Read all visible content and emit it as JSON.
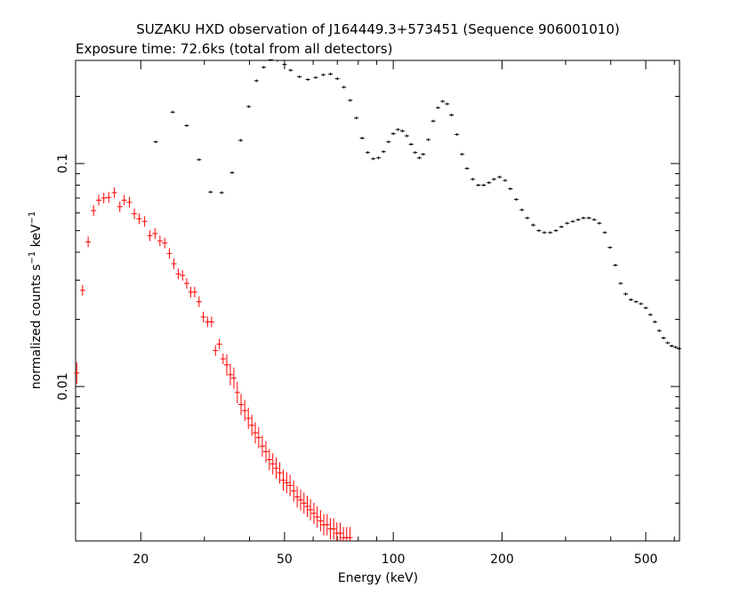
{
  "chart_data": {
    "type": "scatter",
    "title": "SUZAKU HXD observation of J164449.3+573451 (Sequence 906001010)",
    "subtitle": "Exposure time: 72.6ks (total from all detectors)",
    "xlabel": "Energy (keV)",
    "ylabel": "normalized counts s⁻¹ keV⁻¹",
    "ylabel_parts": {
      "text_a": "normalized counts s",
      "sup_a": "−1",
      "text_b": " keV",
      "sup_b": "−1"
    },
    "xscale": "log",
    "yscale": "log",
    "xlim": [
      13.2,
      620
    ],
    "ylim": [
      0.00203,
      0.29
    ],
    "xticks": [
      {
        "value": 20,
        "label": "20"
      },
      {
        "value": 50,
        "label": "50"
      },
      {
        "value": 100,
        "label": "100"
      },
      {
        "value": 200,
        "label": "200"
      },
      {
        "value": 500,
        "label": "500"
      }
    ],
    "yticks": [
      {
        "value": 0.01,
        "label": "0.01"
      },
      {
        "value": 0.1,
        "label": "0.1"
      }
    ],
    "grid": false,
    "series": [
      {
        "color": "#ff0000",
        "points": [
          [
            13.3,
            0.0115
          ],
          [
            13.8,
            0.027
          ],
          [
            14.3,
            0.0445
          ],
          [
            14.8,
            0.0615
          ],
          [
            15.3,
            0.0685
          ],
          [
            15.8,
            0.07
          ],
          [
            16.3,
            0.0705
          ],
          [
            16.9,
            0.074
          ],
          [
            17.5,
            0.064
          ],
          [
            18.0,
            0.0685
          ],
          [
            18.6,
            0.067
          ],
          [
            19.2,
            0.0595
          ],
          [
            19.8,
            0.0565
          ],
          [
            20.5,
            0.055
          ],
          [
            21.2,
            0.0475
          ],
          [
            21.9,
            0.0485
          ],
          [
            22.6,
            0.045
          ],
          [
            23.3,
            0.044
          ],
          [
            24.0,
            0.0395
          ],
          [
            24.7,
            0.0355
          ],
          [
            25.4,
            0.032
          ],
          [
            26.1,
            0.0315
          ],
          [
            26.8,
            0.029
          ],
          [
            27.5,
            0.0265
          ],
          [
            28.2,
            0.0265
          ],
          [
            29.0,
            0.024
          ],
          [
            29.8,
            0.0205
          ],
          [
            30.6,
            0.0195
          ],
          [
            31.4,
            0.0195
          ],
          [
            32.2,
            0.0145
          ],
          [
            33.0,
            0.0155
          ],
          [
            33.8,
            0.0133
          ],
          [
            34.6,
            0.0125
          ],
          [
            35.4,
            0.0113
          ],
          [
            36.2,
            0.0109
          ],
          [
            37.0,
            0.0094
          ],
          [
            37.9,
            0.0083
          ],
          [
            38.8,
            0.0078
          ],
          [
            39.7,
            0.0072
          ],
          [
            40.6,
            0.0067
          ],
          [
            41.5,
            0.0062
          ],
          [
            42.4,
            0.0059
          ],
          [
            43.4,
            0.0054
          ],
          [
            44.4,
            0.0051
          ],
          [
            45.4,
            0.0047
          ],
          [
            46.4,
            0.0045
          ],
          [
            47.4,
            0.0043
          ],
          [
            48.5,
            0.0041
          ],
          [
            49.6,
            0.0038
          ],
          [
            50.7,
            0.0037
          ],
          [
            51.8,
            0.0036
          ],
          [
            53.0,
            0.0034
          ],
          [
            54.2,
            0.0032
          ],
          [
            55.4,
            0.0031
          ],
          [
            56.6,
            0.003
          ],
          [
            57.8,
            0.0029
          ],
          [
            59.0,
            0.0028
          ],
          [
            60.3,
            0.0027
          ],
          [
            61.6,
            0.0026
          ],
          [
            62.9,
            0.0025
          ],
          [
            64.2,
            0.0024
          ],
          [
            65.6,
            0.0024
          ],
          [
            67.0,
            0.0023
          ],
          [
            68.4,
            0.0023
          ],
          [
            69.8,
            0.0022
          ],
          [
            71.3,
            0.0022
          ],
          [
            72.8,
            0.0021
          ],
          [
            74.3,
            0.0021
          ],
          [
            75.9,
            0.0021
          ]
        ]
      },
      {
        "color": "#000000",
        "points": [
          [
            22.0,
            0.125
          ],
          [
            24.5,
            0.17
          ],
          [
            26.8,
            0.148
          ],
          [
            29.0,
            0.104
          ],
          [
            31.2,
            0.0745
          ],
          [
            33.5,
            0.074
          ],
          [
            35.8,
            0.091
          ],
          [
            37.8,
            0.127
          ],
          [
            39.8,
            0.18
          ],
          [
            41.8,
            0.235
          ],
          [
            43.8,
            0.27
          ],
          [
            45.8,
            0.292
          ],
          [
            47.8,
            0.29
          ],
          [
            50.0,
            0.278
          ],
          [
            52.0,
            0.262
          ],
          [
            55.0,
            0.245
          ],
          [
            58.0,
            0.238
          ],
          [
            61.0,
            0.243
          ],
          [
            64.0,
            0.25
          ],
          [
            67.0,
            0.252
          ],
          [
            70.0,
            0.24
          ],
          [
            73.0,
            0.22
          ],
          [
            76.0,
            0.192
          ],
          [
            79.0,
            0.16
          ],
          [
            82.0,
            0.13
          ],
          [
            85.0,
            0.112
          ],
          [
            88.0,
            0.105
          ],
          [
            91.0,
            0.106
          ],
          [
            94.0,
            0.113
          ],
          [
            97.0,
            0.125
          ],
          [
            100.0,
            0.136
          ],
          [
            103.0,
            0.142
          ],
          [
            106.0,
            0.14
          ],
          [
            109.0,
            0.133
          ],
          [
            112.0,
            0.122
          ],
          [
            115.0,
            0.112
          ],
          [
            118.0,
            0.106
          ],
          [
            121.0,
            0.11
          ],
          [
            125.0,
            0.128
          ],
          [
            129.0,
            0.155
          ],
          [
            133.0,
            0.178
          ],
          [
            137.0,
            0.19
          ],
          [
            141.0,
            0.185
          ],
          [
            145.0,
            0.165
          ],
          [
            150.0,
            0.135
          ],
          [
            155.0,
            0.11
          ],
          [
            160.0,
            0.095
          ],
          [
            166.0,
            0.085
          ],
          [
            172.0,
            0.08
          ],
          [
            178.0,
            0.08
          ],
          [
            184.0,
            0.082
          ],
          [
            190.0,
            0.085
          ],
          [
            197.0,
            0.087
          ],
          [
            204.0,
            0.084
          ],
          [
            211.0,
            0.077
          ],
          [
            219.0,
            0.069
          ],
          [
            227.0,
            0.062
          ],
          [
            235.0,
            0.057
          ],
          [
            244.0,
            0.053
          ],
          [
            253.0,
            0.05
          ],
          [
            262.0,
            0.049
          ],
          [
            272.0,
            0.049
          ],
          [
            282.0,
            0.05
          ],
          [
            292.0,
            0.052
          ],
          [
            303.0,
            0.054
          ],
          [
            314.0,
            0.055
          ],
          [
            325.0,
            0.056
          ],
          [
            336.0,
            0.057
          ],
          [
            348.0,
            0.057
          ],
          [
            360.0,
            0.056
          ],
          [
            372.0,
            0.054
          ],
          [
            385.0,
            0.049
          ],
          [
            398.0,
            0.042
          ],
          [
            412.0,
            0.035
          ],
          [
            426.0,
            0.029
          ],
          [
            440.0,
            0.026
          ],
          [
            455.0,
            0.0245
          ],
          [
            470.0,
            0.024
          ],
          [
            485.0,
            0.0235
          ],
          [
            500.0,
            0.0225
          ],
          [
            515.0,
            0.021
          ],
          [
            530.0,
            0.0195
          ],
          [
            545.0,
            0.0178
          ],
          [
            560.0,
            0.0165
          ],
          [
            575.0,
            0.0157
          ],
          [
            590.0,
            0.0152
          ],
          [
            605.0,
            0.015
          ],
          [
            618.0,
            0.0148
          ]
        ]
      }
    ]
  }
}
